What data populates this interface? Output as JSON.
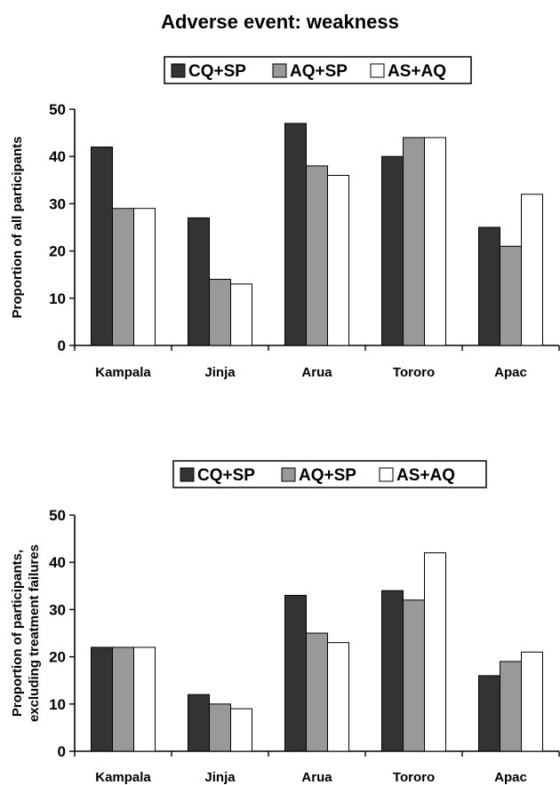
{
  "title": "Adverse event: weakness",
  "colors": {
    "CQ+SP": "#333333",
    "AQ+SP": "#999999",
    "AS+AQ": "#ffffff",
    "outline": "#000000"
  },
  "chart_data": [
    {
      "type": "bar",
      "title": "Adverse event: weakness",
      "categories": [
        "Kampala",
        "Jinja",
        "Arua",
        "Tororo",
        "Apac"
      ],
      "series": [
        {
          "name": "CQ+SP",
          "values": [
            42,
            27,
            47,
            40,
            25
          ]
        },
        {
          "name": "AQ+SP",
          "values": [
            29,
            14,
            38,
            44,
            21
          ]
        },
        {
          "name": "AS+AQ",
          "values": [
            29,
            13,
            36,
            44,
            32
          ]
        }
      ],
      "ylabel": [
        "Proportion of all participants"
      ],
      "ylim": [
        0,
        50
      ],
      "yticks": [
        0,
        10,
        20,
        30,
        40,
        50
      ],
      "grid": false,
      "legend": "top"
    },
    {
      "type": "bar",
      "categories": [
        "Kampala",
        "Jinja",
        "Arua",
        "Tororo",
        "Apac"
      ],
      "series": [
        {
          "name": "CQ+SP",
          "values": [
            22,
            12,
            33,
            34,
            16
          ]
        },
        {
          "name": "AQ+SP",
          "values": [
            22,
            10,
            25,
            32,
            19
          ]
        },
        {
          "name": "AS+AQ",
          "values": [
            22,
            9,
            23,
            42,
            21
          ]
        }
      ],
      "ylabel": [
        "Proportion of participants,",
        "excluding treatment failures"
      ],
      "ylim": [
        0,
        50
      ],
      "yticks": [
        0,
        10,
        20,
        30,
        40,
        50
      ],
      "grid": false,
      "legend": "top"
    }
  ]
}
